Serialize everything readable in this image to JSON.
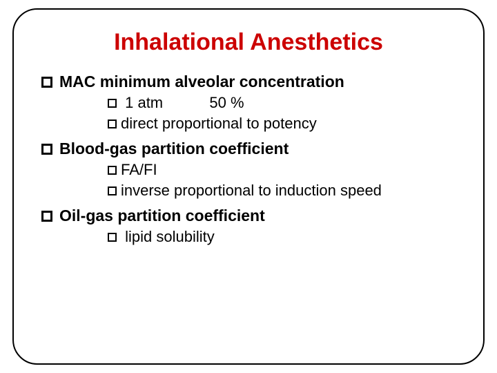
{
  "title": {
    "text": "Inhalational Anesthetics",
    "color": "#cc0000",
    "fontsize": 34,
    "fontweight": "bold"
  },
  "bullets": {
    "square_border_color": "#000000",
    "main_fontsize": 23,
    "sub_fontsize": 22,
    "text_color": "#000000"
  },
  "items": [
    {
      "label": " MAC minimum alveolar concentration",
      "subs": [
        {
          "text": " 1 atm           50 %"
        },
        {
          "text": "direct proportional to potency"
        }
      ]
    },
    {
      "label": "Blood-gas partition coefficient",
      "subs": [
        {
          "text": "FA/FI"
        },
        {
          "text": "inverse proportional to induction speed"
        }
      ]
    },
    {
      "label": "Oil-gas partition coefficient",
      "subs": [
        {
          "text": " lipid solubility"
        }
      ]
    }
  ],
  "frame": {
    "border_color": "#000000",
    "border_radius": 36,
    "background_color": "#ffffff"
  }
}
